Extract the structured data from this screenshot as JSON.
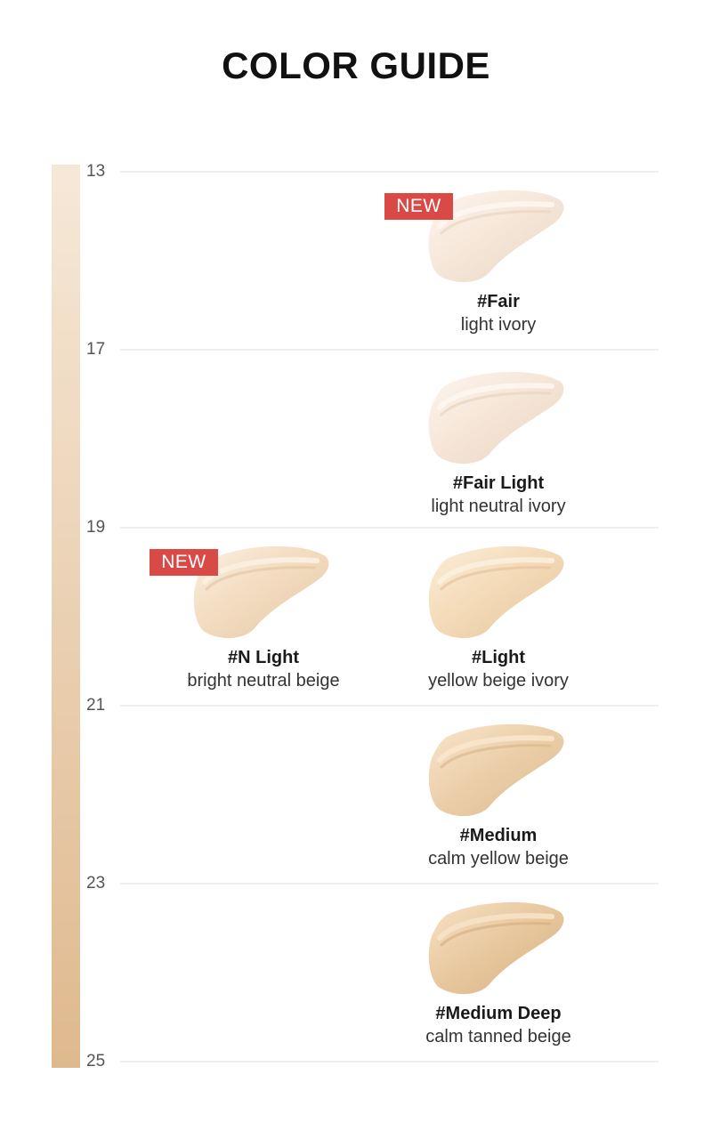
{
  "title": "COLOR GUIDE",
  "scale_ticks": [
    "13",
    "17",
    "19",
    "21",
    "23",
    "25"
  ],
  "gradient": {
    "top_color": "#f6e8d8",
    "bottom_color": "#dfb98e"
  },
  "badge_color": "#d94a47",
  "shades": [
    {
      "name": "#Fair",
      "description": "light ivory",
      "badge": "NEW",
      "color": "#f6e7d9",
      "highlight": "#fdf6ef",
      "shadow": "#e9d6c3"
    },
    {
      "name": "#Fair Light",
      "description": "light neutral ivory",
      "badge": "",
      "color": "#f6e6d8",
      "highlight": "#fdf6ef",
      "shadow": "#e8d4c1"
    },
    {
      "name": "#N Light",
      "description": "bright neutral beige",
      "badge": "NEW",
      "color": "#f3dcc0",
      "highlight": "#fbefe1",
      "shadow": "#e4c8a6"
    },
    {
      "name": "#Light",
      "description": "yellow beige ivory",
      "badge": "",
      "color": "#f4dbb9",
      "highlight": "#fbeedb",
      "shadow": "#e5c59d"
    },
    {
      "name": "#Medium",
      "description": "calm yellow beige",
      "badge": "",
      "color": "#ecd0ab",
      "highlight": "#f8e6cc",
      "shadow": "#dbb98c"
    },
    {
      "name": "#Medium Deep",
      "description": "calm tanned beige",
      "badge": "",
      "color": "#e9c9a0",
      "highlight": "#f7e2c6",
      "shadow": "#d7b183"
    }
  ]
}
